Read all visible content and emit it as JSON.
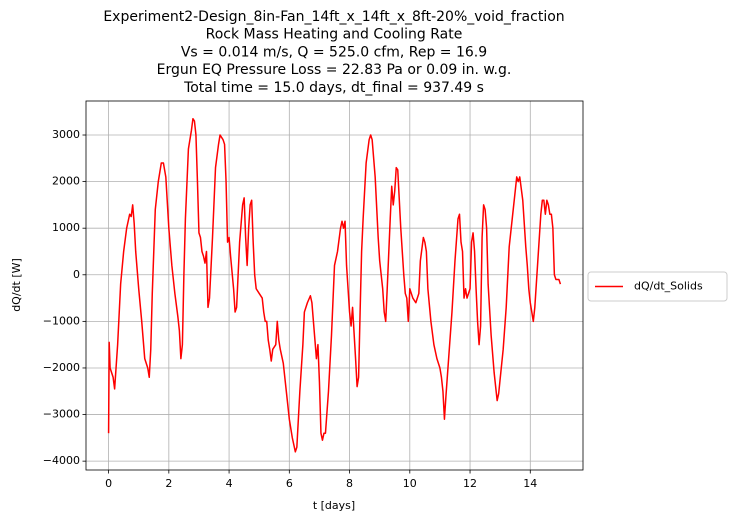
{
  "chart_data": {
    "type": "line",
    "title": [
      "Experiment2-Design_8in-Fan_14ft_x_14ft_x_8ft-20%_void_fraction",
      "Rock Mass Heating and Cooling Rate",
      "Vs = 0.014 m/s, Q = 525.0 cfm, Rep = 16.9",
      "Ergun EQ Pressure Loss = 22.83 Pa or 0.09 in. w.g.",
      "Total time = 15.0 days, dt_final = 937.49 s"
    ],
    "x_label": "t [days]",
    "y_label": "dQ/dt [W]",
    "x": [
      0,
      0.02,
      0.05,
      0.15,
      0.2,
      0.3,
      0.4,
      0.5,
      0.6,
      0.7,
      0.75,
      0.8,
      0.85,
      0.9,
      1.0,
      1.1,
      1.2,
      1.3,
      1.35,
      1.4,
      1.45,
      1.55,
      1.65,
      1.75,
      1.82,
      1.9,
      2.0,
      2.1,
      2.2,
      2.3,
      2.35,
      2.4,
      2.45,
      2.5,
      2.55,
      2.65,
      2.75,
      2.8,
      2.85,
      2.9,
      2.95,
      3.0,
      3.05,
      3.1,
      3.15,
      3.2,
      3.25,
      3.3,
      3.35,
      3.45,
      3.55,
      3.65,
      3.7,
      3.8,
      3.85,
      3.9,
      3.95,
      4.0,
      4.05,
      4.15,
      4.2,
      4.25,
      4.35,
      4.45,
      4.5,
      4.55,
      4.6,
      4.65,
      4.7,
      4.75,
      4.8,
      4.85,
      4.9,
      5.0,
      5.1,
      5.15,
      5.2,
      5.25,
      5.3,
      5.35,
      5.4,
      5.45,
      5.55,
      5.6,
      5.65,
      5.7,
      5.8,
      5.9,
      6.0,
      6.1,
      6.2,
      6.25,
      6.35,
      6.45,
      6.5,
      6.6,
      6.7,
      6.75,
      6.8,
      6.9,
      6.95,
      7.0,
      7.05,
      7.1,
      7.15,
      7.2,
      7.3,
      7.4,
      7.5,
      7.6,
      7.7,
      7.75,
      7.8,
      7.85,
      7.9,
      8.0,
      8.05,
      8.1,
      8.2,
      8.25,
      8.3,
      8.35,
      8.4,
      8.45,
      8.55,
      8.65,
      8.7,
      8.75,
      8.85,
      8.95,
      9.0,
      9.1,
      9.15,
      9.2,
      9.25,
      9.35,
      9.4,
      9.45,
      9.5,
      9.55,
      9.6,
      9.7,
      9.8,
      9.85,
      9.9,
      9.95,
      10.0,
      10.05,
      10.1,
      10.2,
      10.3,
      10.35,
      10.45,
      10.5,
      10.55,
      10.6,
      10.7,
      10.8,
      10.9,
      11.0,
      11.05,
      11.1,
      11.15,
      11.2,
      11.3,
      11.4,
      11.5,
      11.6,
      11.65,
      11.7,
      11.75,
      11.8,
      11.85,
      11.9,
      12.0,
      12.05,
      12.1,
      12.15,
      12.2,
      12.25,
      12.3,
      12.35,
      12.4,
      12.45,
      12.5,
      12.55,
      12.6,
      12.7,
      12.8,
      12.9,
      12.95,
      13.1,
      13.2,
      13.3,
      13.4,
      13.5,
      13.55,
      13.6,
      13.65,
      13.75,
      13.85,
      13.9,
      13.95,
      14.0,
      14.05,
      14.1,
      14.15,
      14.25,
      14.35,
      14.4,
      14.45,
      14.5,
      14.55,
      14.6,
      14.65,
      14.7,
      14.75,
      14.8,
      14.85,
      14.9,
      14.95,
      15.0
    ],
    "series": [
      {
        "name": "dQ/dt_Solids",
        "color": "#ff0000",
        "values": [
          -3400,
          -1450,
          -2000,
          -2200,
          -2450,
          -1500,
          -200,
          500,
          1000,
          1300,
          1250,
          1500,
          1100,
          500,
          -300,
          -1000,
          -1800,
          -2000,
          -2200,
          -1600,
          -400,
          1400,
          2000,
          2400,
          2400,
          2100,
          1000,
          200,
          -400,
          -900,
          -1200,
          -1800,
          -1500,
          0,
          1200,
          2700,
          3100,
          3350,
          3300,
          3000,
          2000,
          900,
          800,
          500,
          400,
          250,
          500,
          -700,
          -500,
          800,
          2300,
          2800,
          3000,
          2900,
          2800,
          2000,
          700,
          800,
          400,
          -300,
          -800,
          -700,
          700,
          1500,
          1650,
          800,
          200,
          1000,
          1500,
          1600,
          700,
          0,
          -300,
          -400,
          -500,
          -800,
          -1000,
          -1000,
          -1400,
          -1600,
          -1850,
          -1600,
          -1500,
          -1000,
          -1400,
          -1600,
          -1900,
          -2500,
          -3100,
          -3500,
          -3800,
          -3700,
          -2500,
          -1500,
          -800,
          -600,
          -450,
          -600,
          -1000,
          -1800,
          -1500,
          -2300,
          -3400,
          -3550,
          -3400,
          -3400,
          -2500,
          -1300,
          200,
          500,
          1000,
          1150,
          1000,
          1150,
          200,
          -800,
          -1100,
          -700,
          -1800,
          -2400,
          -2200,
          -800,
          500,
          1200,
          2400,
          2900,
          3000,
          2900,
          2100,
          800,
          300,
          -300,
          -800,
          -1000,
          -300,
          1200,
          1900,
          1500,
          1800,
          2300,
          2250,
          1000,
          0,
          -400,
          -500,
          -1000,
          -300,
          -400,
          -500,
          -600,
          -400,
          300,
          800,
          700,
          500,
          -300,
          -1000,
          -1500,
          -1800,
          -2000,
          -2200,
          -2500,
          -3100,
          -2600,
          -1700,
          -800,
          300,
          1200,
          1300,
          700,
          500,
          -500,
          -300,
          -500,
          -300,
          700,
          900,
          500,
          -300,
          -1000,
          -1500,
          -1100,
          800,
          1500,
          1400,
          1000,
          -200,
          -1300,
          -2100,
          -2700,
          -2550,
          -1600,
          -700,
          600,
          1200,
          1800,
          2100,
          2000,
          2100,
          1600,
          600,
          200,
          -300,
          -600,
          -800,
          -1000,
          -700,
          300,
          1300,
          1600,
          1600,
          1300,
          1600,
          1500,
          1300,
          1300,
          1000,
          0,
          -100,
          -100,
          -100,
          -200
        ]
      }
    ],
    "xlim": [
      -0.75,
      15.75
    ],
    "ylim": [
      -4190,
      3730
    ],
    "xticks": [
      0,
      2,
      4,
      6,
      8,
      10,
      12,
      14
    ],
    "yticks": [
      {
        "value": -4000,
        "label": "−4000"
      },
      {
        "value": -3000,
        "label": "−3000"
      },
      {
        "value": -2000,
        "label": "−2000"
      },
      {
        "value": -1000,
        "label": "−1000"
      },
      0,
      1000,
      2000,
      3000
    ],
    "grid": true,
    "legend": "outside-right"
  }
}
